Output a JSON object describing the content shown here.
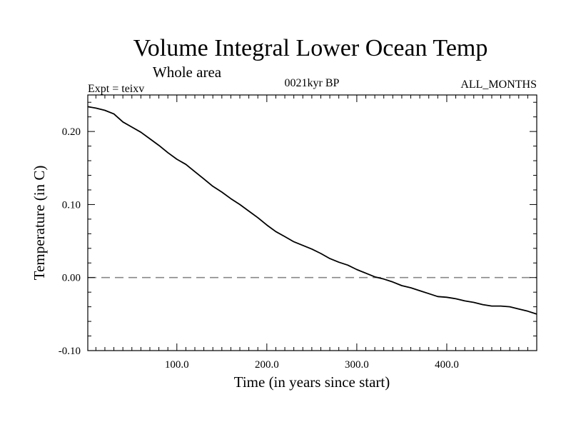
{
  "chart_data": {
    "type": "line",
    "title": "Volume Integral Lower Ocean Temp",
    "subtitle": "Whole area",
    "experiment_label": "Expt = teixv",
    "period_label": "0021kyr BP",
    "months_label": "ALL_MONTHS",
    "xlabel": "Time (in years since start)",
    "ylabel": "Temperature (in C)",
    "xlim": [
      1,
      500
    ],
    "ylim": [
      -0.1,
      0.25
    ],
    "xticks": [
      100,
      200,
      300,
      400
    ],
    "xtick_labels": [
      "100.0",
      "200.0",
      "300.0",
      "400.0"
    ],
    "yticks": [
      -0.1,
      0.0,
      0.1,
      0.2
    ],
    "ytick_labels": [
      "-0.10",
      "0.00",
      "0.10",
      "0.20"
    ],
    "grid": false,
    "reference_line": {
      "y": 0.0,
      "style": "dashed",
      "color": "#888888"
    },
    "series": [
      {
        "color": "#000000",
        "x": [
          1,
          10,
          20,
          30,
          40,
          50,
          60,
          70,
          80,
          90,
          100,
          110,
          120,
          130,
          140,
          150,
          160,
          170,
          180,
          190,
          200,
          210,
          220,
          230,
          240,
          250,
          260,
          270,
          280,
          290,
          300,
          310,
          320,
          330,
          340,
          350,
          360,
          370,
          380,
          390,
          400,
          410,
          420,
          430,
          440,
          450,
          460,
          470,
          480,
          490,
          500
        ],
        "y": [
          0.234,
          0.232,
          0.229,
          0.224,
          0.213,
          0.206,
          0.199,
          0.19,
          0.181,
          0.171,
          0.162,
          0.155,
          0.145,
          0.135,
          0.125,
          0.117,
          0.108,
          0.1,
          0.091,
          0.082,
          0.072,
          0.063,
          0.056,
          0.049,
          0.044,
          0.039,
          0.033,
          0.026,
          0.021,
          0.017,
          0.011,
          0.006,
          0.001,
          -0.002,
          -0.006,
          -0.011,
          -0.014,
          -0.018,
          -0.022,
          -0.026,
          -0.027,
          -0.029,
          -0.032,
          -0.034,
          -0.037,
          -0.039,
          -0.039,
          -0.04,
          -0.043,
          -0.046,
          -0.05
        ]
      }
    ]
  }
}
